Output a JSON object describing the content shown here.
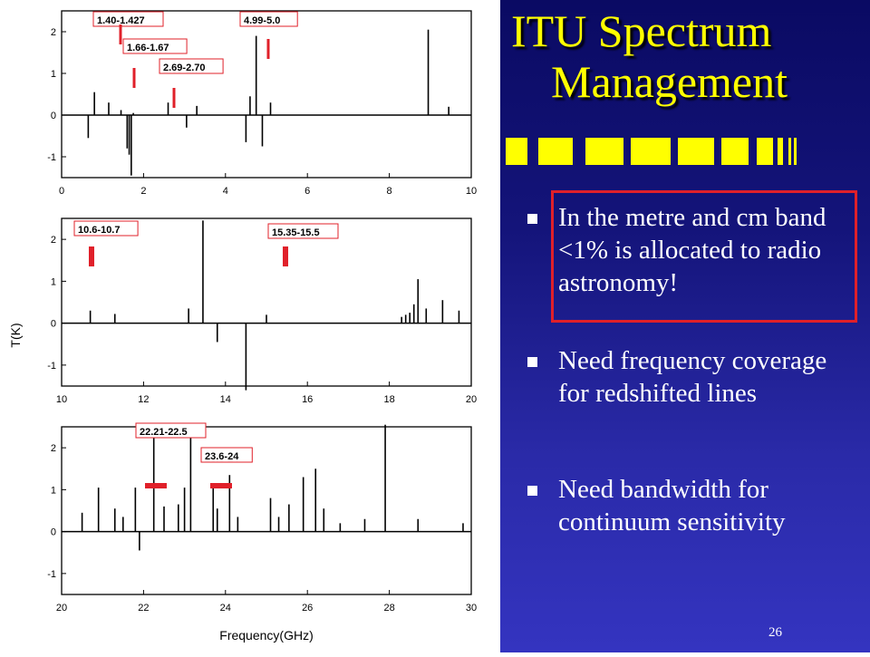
{
  "slide": {
    "title_line1": "ITU Spectrum",
    "title_line2": "Management",
    "bullets": [
      "In the metre and cm band <1% is allocated to radio astronomy!",
      "Need frequency coverage for redshifted lines",
      "Need  bandwidth for continuum sensitivity"
    ],
    "slide_number": "26",
    "colors": {
      "background": "#14147a",
      "title": "#ffff00",
      "text": "#ffffff",
      "highlight_box": "#e0202a"
    }
  },
  "chart_data": [
    {
      "type": "line",
      "xlim": [
        0,
        10
      ],
      "ylim": [
        -1.5,
        2.5
      ],
      "x_ticks": [
        0,
        2,
        4,
        6,
        8,
        10
      ],
      "y_ticks": [
        -1,
        0,
        1,
        2
      ],
      "lines": [
        {
          "x": 0.65,
          "y": -0.55
        },
        {
          "x": 0.8,
          "y": 0.55
        },
        {
          "x": 1.15,
          "y": 0.3
        },
        {
          "x": 1.45,
          "y": 0.12
        },
        {
          "x": 1.6,
          "y": -0.8
        },
        {
          "x": 1.65,
          "y": -0.95
        },
        {
          "x": 1.7,
          "y": -1.45
        },
        {
          "x": 1.75,
          "y": 0.05
        },
        {
          "x": 2.6,
          "y": 0.3
        },
        {
          "x": 3.05,
          "y": -0.3
        },
        {
          "x": 3.3,
          "y": 0.22
        },
        {
          "x": 4.5,
          "y": -0.65
        },
        {
          "x": 4.6,
          "y": 0.45
        },
        {
          "x": 4.75,
          "y": 1.9
        },
        {
          "x": 4.9,
          "y": -0.75
        },
        {
          "x": 5.1,
          "y": 0.3
        },
        {
          "x": 8.95,
          "y": 2.05
        },
        {
          "x": 9.45,
          "y": 0.2
        }
      ],
      "annotations": [
        {
          "text": "1.40-1.427",
          "x": 1.43
        },
        {
          "text": "1.66-1.67",
          "x": 1.66
        },
        {
          "text": "2.69-2.70",
          "x": 2.7
        },
        {
          "text": "4.99-5.0",
          "x": 4.99
        }
      ]
    },
    {
      "type": "line",
      "xlim": [
        10,
        20
      ],
      "ylim": [
        -1.5,
        2.5
      ],
      "x_ticks": [
        10,
        12,
        14,
        16,
        18,
        20
      ],
      "y_ticks": [
        -1,
        0,
        1,
        2
      ],
      "lines": [
        {
          "x": 10.7,
          "y": 0.3
        },
        {
          "x": 11.3,
          "y": 0.22
        },
        {
          "x": 13.1,
          "y": 0.35
        },
        {
          "x": 13.45,
          "y": 2.45
        },
        {
          "x": 13.8,
          "y": -0.45
        },
        {
          "x": 14.5,
          "y": -1.6
        },
        {
          "x": 15.0,
          "y": 0.2
        },
        {
          "x": 18.3,
          "y": 0.15
        },
        {
          "x": 18.4,
          "y": 0.2
        },
        {
          "x": 18.5,
          "y": 0.25
        },
        {
          "x": 18.6,
          "y": 0.45
        },
        {
          "x": 18.7,
          "y": 1.05
        },
        {
          "x": 18.9,
          "y": 0.35
        },
        {
          "x": 19.3,
          "y": 0.55
        },
        {
          "x": 19.7,
          "y": 0.3
        }
      ],
      "annotations": [
        {
          "text": "10.6-10.7",
          "x": 10.65
        },
        {
          "text": "15.35-15.5",
          "x": 15.42
        }
      ]
    },
    {
      "type": "line",
      "xlim": [
        20,
        30
      ],
      "ylim": [
        -1.5,
        2.5
      ],
      "x_ticks": [
        20,
        22,
        24,
        26,
        28,
        30
      ],
      "y_ticks": [
        -1,
        0,
        1,
        2
      ],
      "xlabel": "Frequency(GHz)",
      "lines": [
        {
          "x": 20.5,
          "y": 0.45
        },
        {
          "x": 20.9,
          "y": 1.05
        },
        {
          "x": 21.3,
          "y": 0.55
        },
        {
          "x": 21.5,
          "y": 0.35
        },
        {
          "x": 21.8,
          "y": 1.05
        },
        {
          "x": 21.9,
          "y": -0.45
        },
        {
          "x": 22.25,
          "y": 2.4
        },
        {
          "x": 22.5,
          "y": 0.6
        },
        {
          "x": 22.85,
          "y": 0.65
        },
        {
          "x": 23.0,
          "y": 1.05
        },
        {
          "x": 23.15,
          "y": 2.45
        },
        {
          "x": 23.7,
          "y": 1.05
        },
        {
          "x": 23.8,
          "y": 0.55
        },
        {
          "x": 24.1,
          "y": 1.35
        },
        {
          "x": 24.3,
          "y": 0.35
        },
        {
          "x": 25.1,
          "y": 0.8
        },
        {
          "x": 25.3,
          "y": 0.35
        },
        {
          "x": 25.55,
          "y": 0.65
        },
        {
          "x": 25.9,
          "y": 1.3
        },
        {
          "x": 26.2,
          "y": 1.5
        },
        {
          "x": 26.4,
          "y": 0.55
        },
        {
          "x": 26.8,
          "y": 0.2
        },
        {
          "x": 27.4,
          "y": 0.3
        },
        {
          "x": 27.9,
          "y": 2.55
        },
        {
          "x": 28.7,
          "y": 0.3
        },
        {
          "x": 29.8,
          "y": 0.2
        }
      ],
      "annotations": [
        {
          "text": "22.21-22.5",
          "x": 22.35
        },
        {
          "text": "23.6-24",
          "x": 23.8
        }
      ]
    }
  ],
  "shared_ylabel": "T(K)"
}
